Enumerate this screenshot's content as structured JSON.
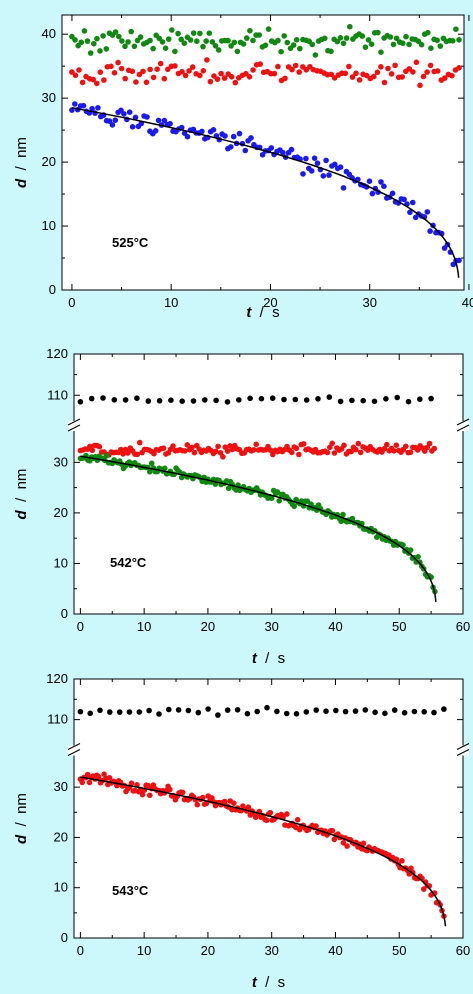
{
  "colors": {
    "background": "#ccf8fb",
    "blue": "#1a1aee",
    "red": "#ee1111",
    "green": "#118811",
    "black": "#000000"
  },
  "chart_data": [
    {
      "type": "scatter",
      "annotation": "525°C",
      "xlabel": "t / s",
      "ylabel": "d / nm",
      "xlim": [
        -1,
        39.5
      ],
      "ylim": [
        0,
        43
      ],
      "xticks": [
        "0",
        "10",
        "20",
        "30",
        "40"
      ],
      "yticks": [
        "0",
        "10",
        "20",
        "30",
        "40"
      ],
      "series": [
        {
          "color": "green",
          "mean": 39.0,
          "noise": 1.6,
          "t_end": 39.0,
          "n": 125
        },
        {
          "color": "red",
          "mean": 34.0,
          "noise": 1.5,
          "t_end": 39.0,
          "n": 110
        },
        {
          "color": "blue",
          "d0": 28.5,
          "tc": 39.0,
          "p": 0.39,
          "noise": 1.3,
          "t_end": 39.0,
          "n": 135
        }
      ],
      "fit": {
        "d0": 28.5,
        "tc": 39.0,
        "p": 0.39
      }
    },
    {
      "type": "scatter",
      "annotation": "542°C",
      "xlabel": "t / s",
      "ylabel": "d / nm",
      "xlim": [
        -1,
        60
      ],
      "ylim": [
        0,
        120
      ],
      "xticks": [
        "0",
        "10",
        "20",
        "30",
        "40",
        "50",
        "60"
      ],
      "yticks": [
        "0",
        "10",
        "20",
        "30",
        "110",
        "120"
      ],
      "axis_break": [
        36,
        104
      ],
      "series": [
        {
          "color": "black",
          "mean": 109.0,
          "noise": 0.6,
          "t_end": 55.0,
          "n": 32
        },
        {
          "color": "red",
          "mean": 32.5,
          "noise": 0.9,
          "t_end": 55.5,
          "n": 150
        },
        {
          "color": "green",
          "d0": 31.2,
          "tc": 55.8,
          "p": 0.37,
          "noise": 0.8,
          "t_end": 55.6,
          "n": 190
        }
      ],
      "fit": {
        "d0": 31.2,
        "tc": 55.8,
        "p": 0.37
      }
    },
    {
      "type": "scatter",
      "annotation": "543°C",
      "xlabel": "t / s",
      "ylabel": "d / nm",
      "xlim": [
        -1,
        60
      ],
      "ylim": [
        0,
        120
      ],
      "xticks": [
        "0",
        "10",
        "20",
        "30",
        "40",
        "50",
        "60"
      ],
      "yticks": [
        "0",
        "10",
        "20",
        "30",
        "110",
        "120"
      ],
      "axis_break": [
        36,
        104
      ],
      "series": [
        {
          "color": "black",
          "mean": 112.0,
          "noise": 0.7,
          "t_end": 57.0,
          "n": 38
        },
        {
          "color": "red",
          "d0": 32.0,
          "tc": 57.3,
          "p": 0.38,
          "noise": 1.0,
          "t_end": 57.0,
          "n": 200
        }
      ],
      "fit": {
        "d0": 32.0,
        "tc": 57.3,
        "p": 0.38
      }
    }
  ]
}
